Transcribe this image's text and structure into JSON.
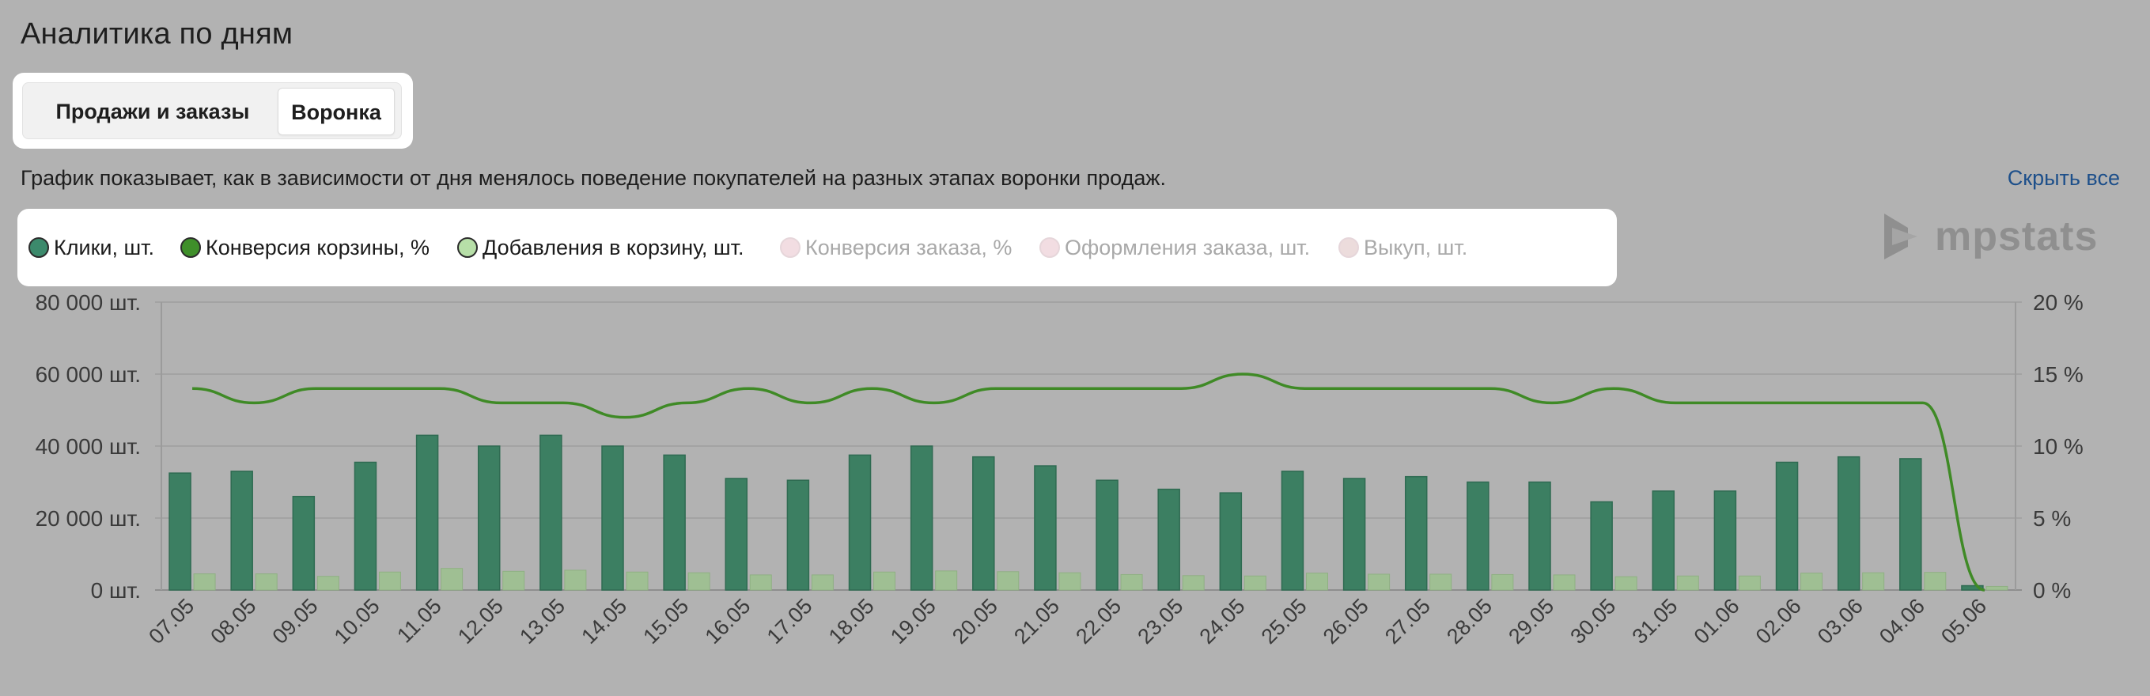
{
  "header": {
    "title": "Аналитика по дням"
  },
  "tabs": [
    {
      "label": "Продажи и заказы",
      "active": false
    },
    {
      "label": "Воронка",
      "active": true
    }
  ],
  "description": "График показывает, как в зависимости от дня менялось поведение покупателей на разных этапах воронки продаж.",
  "hide_all_label": "Скрыть все",
  "legend": [
    {
      "label": "Клики, шт.",
      "active": true,
      "color": "#3c8a6c"
    },
    {
      "label": "Конверсия корзины, %",
      "active": true,
      "color": "#3f8f2a"
    },
    {
      "label": "Добавления в корзину, шт.",
      "active": true,
      "color": "#b7dfa8"
    },
    {
      "label": "Конверсия заказа, %",
      "active": false,
      "color": "#f2dde2"
    },
    {
      "label": "Оформления заказа, шт.",
      "active": false,
      "color": "#f2dde2"
    },
    {
      "label": "Выкуп, шт.",
      "active": false,
      "color": "#ecdcdc"
    }
  ],
  "logo": {
    "text": "mpstats",
    "icon": "mpstats-play-logo-icon"
  },
  "chart_data": {
    "type": "bar",
    "categories": [
      "07.05",
      "08.05",
      "09.05",
      "10.05",
      "11.05",
      "12.05",
      "13.05",
      "14.05",
      "15.05",
      "16.05",
      "17.05",
      "18.05",
      "19.05",
      "20.05",
      "21.05",
      "22.05",
      "23.05",
      "24.05",
      "25.05",
      "26.05",
      "27.05",
      "28.05",
      "29.05",
      "30.05",
      "31.05",
      "01.06",
      "02.06",
      "03.06",
      "04.06",
      "05.06"
    ],
    "y_left": {
      "ticks": [
        "0 шт.",
        "20 000 шт.",
        "40 000 шт.",
        "60 000 шт.",
        "80 000 шт."
      ],
      "range": [
        0,
        80000
      ]
    },
    "y_right": {
      "ticks": [
        "0 %",
        "5 %",
        "10 %",
        "15 %",
        "20 %"
      ],
      "range": [
        0,
        20
      ]
    },
    "series": [
      {
        "name": "Клики, шт.",
        "type": "bar",
        "axis": "left",
        "color": "#3c8a6c",
        "values": [
          32500,
          33000,
          26000,
          35500,
          43000,
          40000,
          43000,
          40000,
          37500,
          31000,
          30500,
          37500,
          40000,
          37000,
          34500,
          30500,
          28000,
          27000,
          33000,
          31000,
          31500,
          30000,
          30000,
          24500,
          27500,
          27500,
          35500,
          37000,
          36500,
          1200
        ]
      },
      {
        "name": "Добавления в корзину, шт.",
        "type": "bar",
        "axis": "left",
        "color": "#b7dfa8",
        "values": [
          4500,
          4500,
          3800,
          5000,
          6000,
          5200,
          5500,
          5000,
          4800,
          4200,
          4200,
          5000,
          5300,
          5100,
          4800,
          4300,
          4000,
          3900,
          4700,
          4400,
          4400,
          4300,
          4200,
          3700,
          3900,
          3900,
          4700,
          4800,
          4900,
          1000
        ]
      },
      {
        "name": "Конверсия корзины, %",
        "type": "line",
        "axis": "right",
        "color": "#3f8f2a",
        "values": [
          14,
          13,
          14,
          14,
          14,
          13,
          13,
          12,
          13,
          14,
          13,
          14,
          13,
          14,
          14,
          14,
          14,
          15,
          14,
          14,
          14,
          14,
          13,
          14,
          13,
          13,
          13,
          13,
          13,
          0
        ]
      }
    ]
  }
}
